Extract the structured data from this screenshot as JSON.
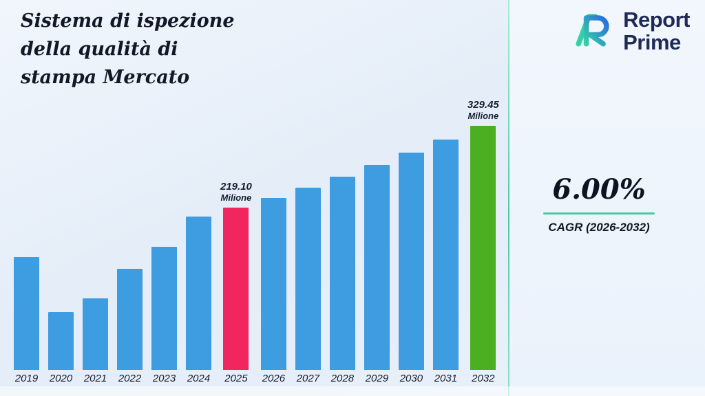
{
  "title": "Sistema di ispezione\ndella qualità di\nstampa Mercato",
  "logo": {
    "line1": "Report",
    "line2": "Prime",
    "icon": "report-prime-logo-icon"
  },
  "stats": {
    "cagr_value": "6.00%",
    "cagr_label": "CAGR (2026-2032)"
  },
  "chart_data": {
    "type": "bar",
    "title": "Sistema di ispezione della qualità di stampa Mercato",
    "unit": "Milione",
    "categories": [
      "2019",
      "2020",
      "2021",
      "2022",
      "2023",
      "2024",
      "2025",
      "2026",
      "2027",
      "2028",
      "2029",
      "2030",
      "2031",
      "2032"
    ],
    "values": [
      152.0,
      78.0,
      96.5,
      136.0,
      166.0,
      206.7,
      219.1,
      232.25,
      246.18,
      260.95,
      276.62,
      293.22,
      310.81,
      329.45
    ],
    "annotations": [
      {
        "index": 6,
        "value": "219.10",
        "unit": "Milione"
      },
      {
        "index": 13,
        "value": "329.45",
        "unit": "Milione"
      }
    ],
    "bar_color_default": "#3E9CE1",
    "bar_color_overrides": {
      "6": "#F2265E",
      "13": "#4CAE21"
    },
    "xlabel": "",
    "ylabel": "",
    "legend": false,
    "grid": false
  },
  "colors": {
    "accent_teal": "#4CC9A3",
    "brand_navy": "#1F2A56",
    "bar_blue": "#3E9CE1",
    "bar_pink": "#F2265E",
    "bar_green": "#4CAE21"
  }
}
